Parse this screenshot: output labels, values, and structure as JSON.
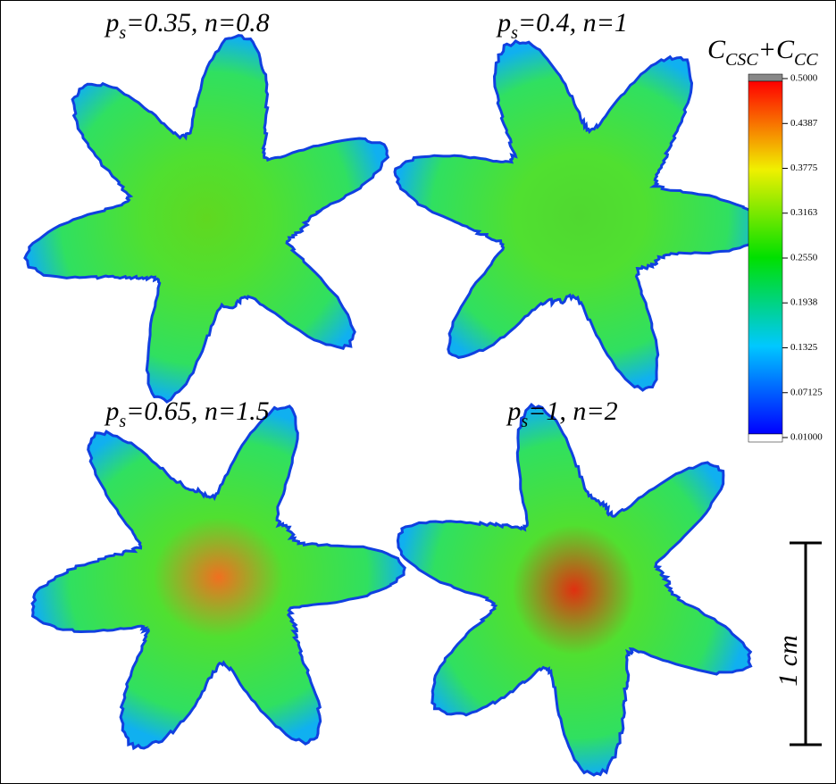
{
  "panels": [
    {
      "symbol": "p",
      "subscript": "s",
      "rest": "=0.35, n=0.8"
    },
    {
      "symbol": "p",
      "subscript": "s",
      "rest": "=0.4, n=1"
    },
    {
      "symbol": "p",
      "subscript": "s",
      "rest": "=0.65, n=1.5"
    },
    {
      "symbol": "p",
      "subscript": "s",
      "rest": "=1, n=2"
    }
  ],
  "colorbar": {
    "label": {
      "c1": "C",
      "s1": "CSC",
      "c2": "+C",
      "s2": "CC"
    },
    "ticks": [
      {
        "value": 0.5,
        "label": "0.5000"
      },
      {
        "value": 0.4387,
        "label": "0.4387"
      },
      {
        "value": 0.3775,
        "label": "0.3775"
      },
      {
        "value": 0.3163,
        "label": "0.3163"
      },
      {
        "value": 0.255,
        "label": "0.2550"
      },
      {
        "value": 0.1938,
        "label": "0.1938"
      },
      {
        "value": 0.1325,
        "label": "0.1325"
      },
      {
        "value": 0.07125,
        "label": "0.07125"
      },
      {
        "value": 0.01,
        "label": "0.01000"
      }
    ]
  },
  "scale_bar": {
    "label": "1 cm"
  }
}
